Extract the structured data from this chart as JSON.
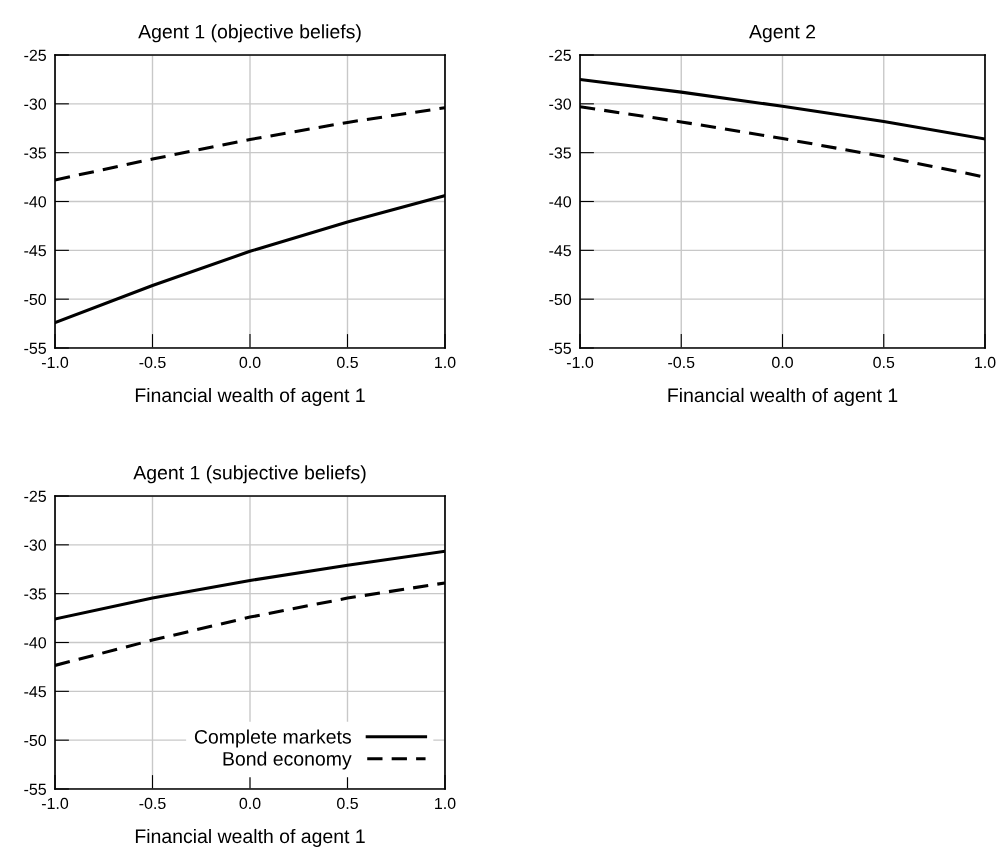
{
  "chart_data": [
    {
      "type": "line",
      "title": "Agent 1 (objective beliefs)",
      "xlabel": "Financial wealth of agent 1",
      "x": [
        -1,
        -0.5,
        0,
        0.5,
        1
      ],
      "series": [
        {
          "color": "#000000",
          "line_style": "solid",
          "values": [
            -52.4,
            -48.6,
            -45.1,
            -42.1,
            -39.4
          ]
        },
        {
          "color": "#000000",
          "line_style": "dashed",
          "values": [
            -37.8,
            -35.65,
            -33.65,
            -31.9,
            -30.4
          ]
        }
      ],
      "xlim": [
        -1,
        1
      ],
      "ylim": [
        -55,
        -25
      ],
      "xticks": [
        {
          "value": -1,
          "label": "-1.0"
        },
        {
          "value": -0.5,
          "label": "-0.5"
        },
        {
          "value": 0,
          "label": "0.0"
        },
        {
          "value": 0.5,
          "label": "0.5"
        },
        {
          "value": 1,
          "label": "1.0"
        }
      ],
      "yticks": [
        -55,
        -50,
        -45,
        -40,
        -35,
        -30,
        -25
      ],
      "grid": true,
      "legend": false
    },
    {
      "type": "line",
      "title": "Agent 2",
      "xlabel": "Financial wealth of agent 1",
      "x": [
        -1,
        -0.5,
        0,
        0.5,
        1
      ],
      "series": [
        {
          "color": "#000000",
          "line_style": "solid",
          "values": [
            -27.5,
            -28.8,
            -30.25,
            -31.8,
            -33.6
          ]
        },
        {
          "color": "#000000",
          "line_style": "dashed",
          "values": [
            -30.3,
            -31.85,
            -33.55,
            -35.4,
            -37.5
          ]
        }
      ],
      "xlim": [
        -1,
        1
      ],
      "ylim": [
        -55,
        -25
      ],
      "xticks": [
        {
          "value": -1,
          "label": "-1.0"
        },
        {
          "value": -0.5,
          "label": "-0.5"
        },
        {
          "value": 0,
          "label": "0.0"
        },
        {
          "value": 0.5,
          "label": "0.5"
        },
        {
          "value": 1,
          "label": "1.0"
        }
      ],
      "yticks": [
        -55,
        -50,
        -45,
        -40,
        -35,
        -30,
        -25
      ],
      "grid": true,
      "legend": false
    },
    {
      "type": "line",
      "title": "Agent 1 (subjective beliefs)",
      "xlabel": "Financial wealth of agent 1",
      "x": [
        -1,
        -0.5,
        0,
        0.5,
        1
      ],
      "series": [
        {
          "name": "Complete markets",
          "color": "#000000",
          "line_style": "solid",
          "values": [
            -37.6,
            -35.45,
            -33.65,
            -32.1,
            -30.65
          ]
        },
        {
          "name": "Bond economy",
          "color": "#000000",
          "line_style": "dashed",
          "values": [
            -42.35,
            -39.75,
            -37.4,
            -35.45,
            -33.9
          ]
        }
      ],
      "xlim": [
        -1,
        1
      ],
      "ylim": [
        -55,
        -25
      ],
      "xticks": [
        {
          "value": -1,
          "label": "-1.0"
        },
        {
          "value": -0.5,
          "label": "-0.5"
        },
        {
          "value": 0,
          "label": "0.0"
        },
        {
          "value": 0.5,
          "label": "0.5"
        },
        {
          "value": 1,
          "label": "1.0"
        }
      ],
      "yticks": [
        -55,
        -50,
        -45,
        -40,
        -35,
        -30,
        -25
      ],
      "grid": true,
      "legend": "bottom right"
    }
  ]
}
